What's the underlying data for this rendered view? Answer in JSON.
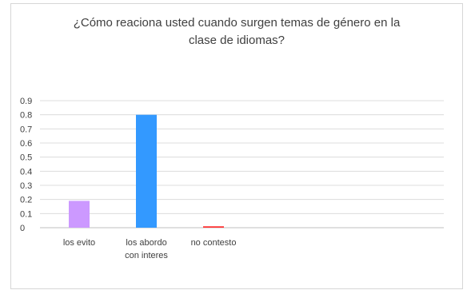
{
  "chart_data": {
    "type": "bar",
    "title_lines": [
      "¿Cómo reaciona usted cuando surgen temas de género en la",
      "clase de idiomas?"
    ],
    "categories": [
      {
        "lines": [
          "los evito"
        ],
        "value": 0.19,
        "color": "#cc99ff"
      },
      {
        "lines": [
          "los abordo",
          "con interes"
        ],
        "value": 0.8,
        "color": "#3399ff"
      },
      {
        "lines": [
          "no contesto"
        ],
        "value": 0.01,
        "color": "#ff3333"
      }
    ],
    "yticks": [
      "0",
      "0.1",
      "0.2",
      "0.3",
      "0.4",
      "0.5",
      "0.6",
      "0.7",
      "0.8",
      "0.9"
    ],
    "ylim": [
      0,
      0.9
    ],
    "grid": true,
    "legend": "none"
  }
}
